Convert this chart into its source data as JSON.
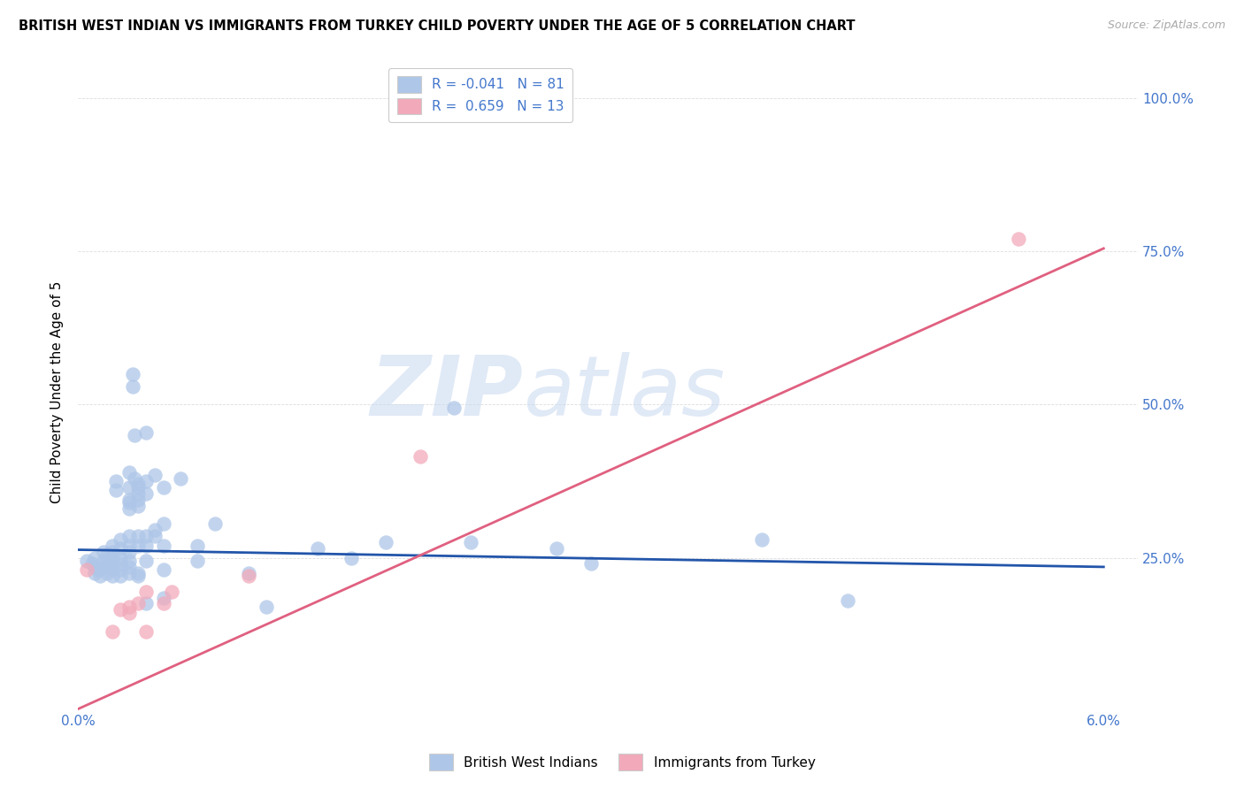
{
  "title": "BRITISH WEST INDIAN VS IMMIGRANTS FROM TURKEY CHILD POVERTY UNDER THE AGE OF 5 CORRELATION CHART",
  "source": "Source: ZipAtlas.com",
  "ylabel": "Child Poverty Under the Age of 5",
  "watermark_part1": "ZIP",
  "watermark_part2": "atlas",
  "legend_r1": "R = -0.041",
  "legend_n1": "N = 81",
  "legend_r2": "R =  0.659",
  "legend_n2": "N = 13",
  "blue_color": "#aec6e8",
  "pink_color": "#f2aaba",
  "line_blue": "#2255aa",
  "line_pink": "#e06080",
  "blue_scatter": [
    [
      0.0005,
      0.245
    ],
    [
      0.0008,
      0.24
    ],
    [
      0.001,
      0.25
    ],
    [
      0.001,
      0.235
    ],
    [
      0.001,
      0.225
    ],
    [
      0.0012,
      0.23
    ],
    [
      0.0013,
      0.22
    ],
    [
      0.0015,
      0.26
    ],
    [
      0.0015,
      0.245
    ],
    [
      0.0015,
      0.235
    ],
    [
      0.0017,
      0.255
    ],
    [
      0.0017,
      0.24
    ],
    [
      0.0017,
      0.225
    ],
    [
      0.002,
      0.27
    ],
    [
      0.002,
      0.26
    ],
    [
      0.002,
      0.25
    ],
    [
      0.002,
      0.24
    ],
    [
      0.002,
      0.23
    ],
    [
      0.002,
      0.22
    ],
    [
      0.0022,
      0.375
    ],
    [
      0.0022,
      0.36
    ],
    [
      0.0025,
      0.28
    ],
    [
      0.0025,
      0.265
    ],
    [
      0.0025,
      0.25
    ],
    [
      0.0025,
      0.24
    ],
    [
      0.0025,
      0.23
    ],
    [
      0.0025,
      0.22
    ],
    [
      0.003,
      0.39
    ],
    [
      0.003,
      0.365
    ],
    [
      0.003,
      0.345
    ],
    [
      0.003,
      0.34
    ],
    [
      0.003,
      0.33
    ],
    [
      0.003,
      0.285
    ],
    [
      0.003,
      0.27
    ],
    [
      0.003,
      0.26
    ],
    [
      0.003,
      0.245
    ],
    [
      0.003,
      0.235
    ],
    [
      0.003,
      0.225
    ],
    [
      0.0032,
      0.55
    ],
    [
      0.0032,
      0.53
    ],
    [
      0.0033,
      0.45
    ],
    [
      0.0033,
      0.38
    ],
    [
      0.0035,
      0.37
    ],
    [
      0.0035,
      0.365
    ],
    [
      0.0035,
      0.355
    ],
    [
      0.0035,
      0.345
    ],
    [
      0.0035,
      0.335
    ],
    [
      0.0035,
      0.285
    ],
    [
      0.0035,
      0.27
    ],
    [
      0.0035,
      0.225
    ],
    [
      0.0035,
      0.22
    ],
    [
      0.004,
      0.455
    ],
    [
      0.004,
      0.375
    ],
    [
      0.004,
      0.355
    ],
    [
      0.004,
      0.285
    ],
    [
      0.004,
      0.27
    ],
    [
      0.004,
      0.245
    ],
    [
      0.004,
      0.175
    ],
    [
      0.0045,
      0.385
    ],
    [
      0.0045,
      0.295
    ],
    [
      0.0045,
      0.285
    ],
    [
      0.005,
      0.365
    ],
    [
      0.005,
      0.305
    ],
    [
      0.005,
      0.27
    ],
    [
      0.005,
      0.23
    ],
    [
      0.005,
      0.185
    ],
    [
      0.006,
      0.38
    ],
    [
      0.007,
      0.27
    ],
    [
      0.007,
      0.245
    ],
    [
      0.008,
      0.305
    ],
    [
      0.01,
      0.225
    ],
    [
      0.011,
      0.17
    ],
    [
      0.014,
      0.265
    ],
    [
      0.016,
      0.25
    ],
    [
      0.018,
      0.275
    ],
    [
      0.022,
      0.495
    ],
    [
      0.023,
      0.275
    ],
    [
      0.028,
      0.265
    ],
    [
      0.03,
      0.24
    ],
    [
      0.04,
      0.28
    ],
    [
      0.045,
      0.18
    ]
  ],
  "pink_scatter": [
    [
      0.0005,
      0.23
    ],
    [
      0.002,
      0.13
    ],
    [
      0.0025,
      0.165
    ],
    [
      0.003,
      0.16
    ],
    [
      0.003,
      0.17
    ],
    [
      0.0035,
      0.175
    ],
    [
      0.004,
      0.195
    ],
    [
      0.004,
      0.13
    ],
    [
      0.005,
      0.175
    ],
    [
      0.0055,
      0.195
    ],
    [
      0.01,
      0.22
    ],
    [
      0.02,
      0.415
    ],
    [
      0.055,
      0.77
    ]
  ],
  "blue_line_x": [
    0.0,
    0.06
  ],
  "blue_line_y": [
    0.263,
    0.235
  ],
  "pink_line_x": [
    0.0,
    0.06
  ],
  "pink_line_y": [
    0.003,
    0.755
  ],
  "xmin": 0.0,
  "xmax": 0.062,
  "ymin": 0.0,
  "ymax": 1.04,
  "yticks": [
    0.0,
    0.25,
    0.5,
    0.75,
    1.0
  ],
  "ytick_labels_right": [
    "",
    "25.0%",
    "50.0%",
    "75.0%",
    "100.0%"
  ],
  "xtick_positions": [
    0.0,
    0.01,
    0.02,
    0.03,
    0.04,
    0.05,
    0.06
  ],
  "grid_color": "#dddddd",
  "title_fontsize": 10.5,
  "source_color": "#aaaaaa",
  "tick_color": "#4477cc"
}
